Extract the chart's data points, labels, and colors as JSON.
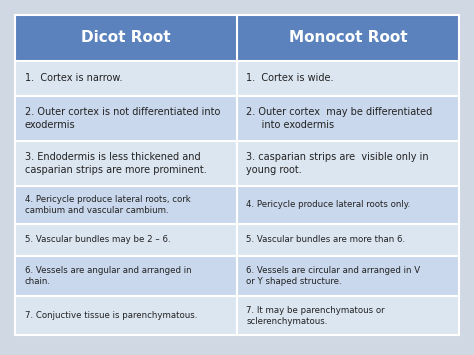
{
  "title_left": "Dicot Root",
  "title_right": "Monocot Root",
  "header_bg": "#5B82BC",
  "header_text_color": "#FFFFFF",
  "row_bg_light": "#C9D8EC",
  "row_bg_white": "#DCE6F1",
  "outer_bg": "#D0D8E4",
  "text_color": "#222222",
  "rows": [
    {
      "left": "1.  Cortex is narrow.",
      "right": "1.  Cortex is wide.",
      "shade": "white"
    },
    {
      "left": "2. Outer cortex is not differentiated into\nexodermis",
      "right": "2. Outer cortex  may be differentiated\n     into exodermis",
      "shade": "light"
    },
    {
      "left": "3. Endodermis is less thickened and\ncasparian strips are more prominent.",
      "right": "3. casparian strips are  visible only in\nyoung root.",
      "shade": "white"
    },
    {
      "left": "4. Pericycle produce lateral roots, cork\ncambium and vascular cambium.",
      "right": "4. Pericycle produce lateral roots only.",
      "shade": "light"
    },
    {
      "left": "5. Vascular bundles may be 2 – 6.",
      "right": "5. Vascular bundles are more than 6.",
      "shade": "white"
    },
    {
      "left": "6. Vessels are angular and arranged in\nchain.",
      "right": "6. Vessels are circular and arranged in V\nor Y shaped structure.",
      "shade": "light"
    },
    {
      "left": "7. Conjuctive tissue is parenchymatous.",
      "right": "7. It may be parenchymatous or\nsclerenchymatous.",
      "shade": "white"
    }
  ],
  "figsize": [
    4.74,
    3.55
  ],
  "dpi": 100
}
